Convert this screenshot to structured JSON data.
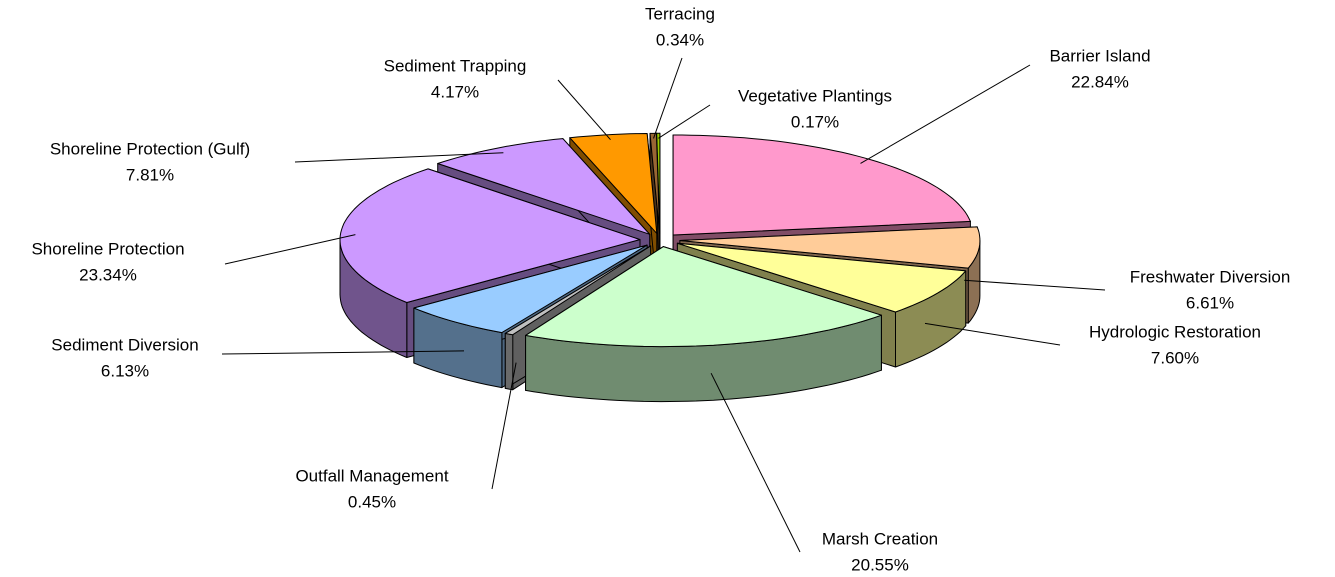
{
  "chart_data": {
    "type": "pie",
    "categories": [
      "Barrier Island",
      "Freshwater Diversion",
      "Hydrologic Restoration",
      "Marsh Creation",
      "Outfall Management",
      "Sediment Diversion",
      "Shoreline Protection",
      "Shoreline Protection (Gulf)",
      "Sediment Trapping",
      "Terracing",
      "Vegetative Plantings"
    ],
    "values": [
      22.84,
      6.61,
      7.6,
      20.55,
      0.45,
      6.13,
      23.34,
      7.81,
      4.17,
      0.34,
      0.17
    ],
    "value_labels": [
      "22.84%",
      "6.61%",
      "7.60%",
      "20.55%",
      "0.45%",
      "6.13%",
      "23.34%",
      "7.81%",
      "4.17%",
      "0.34%",
      "0.17%"
    ],
    "colors": [
      "#ff99cc",
      "#ffcc99",
      "#ffff99",
      "#ccffcc",
      "#c0c0c0",
      "#99ccff",
      "#cc99ff",
      "#cc99ff",
      "#ff9900",
      "#996633",
      "#99cc00"
    ]
  }
}
